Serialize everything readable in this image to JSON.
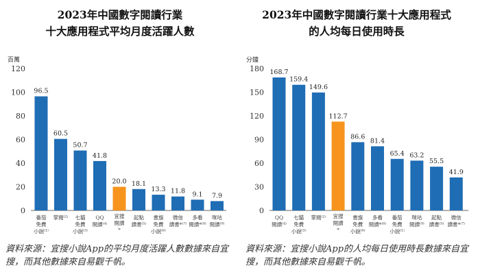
{
  "chart_data": [
    {
      "type": "bar",
      "title": "2023年中國數字閱讀行業",
      "subtitle": "十大應用程式平均月度活躍人數",
      "ylabel": "百萬",
      "ylim": [
        0,
        120
      ],
      "yticks": [
        0,
        20,
        40,
        60,
        80,
        100,
        120
      ],
      "categories": [
        "番茄免費小說⁽¹⁾",
        "掌閱⁽²⁾",
        "七貓免費小說⁽³⁾",
        "QQ閱讀⁽⁴⁾",
        "宜搜閱讀*",
        "起點讀書⁽⁵⁾",
        "書旗免費小說⁽⁶⁾",
        "微信讀書*⁽⁷⁾",
        "多看閱讀*⁽⁸⁾",
        "咪咕閱讀⁽⁹⁾"
      ],
      "values": [
        96.5,
        60.5,
        50.7,
        41.8,
        20.0,
        18.1,
        13.3,
        11.8,
        9.1,
        7.9
      ],
      "value_labels": [
        "96.5",
        "60.5",
        "50.7",
        "41.8",
        "20.0",
        "18.1",
        "13.3",
        "11.8",
        "9.1",
        "7.9"
      ],
      "highlight": "宜搜閱讀*",
      "source": "資料來源：宜搜小說App的平均月度活躍人數數據來自宜搜，而其他數據來自易觀千帆。"
    },
    {
      "type": "bar",
      "title": "2023年中國數字閱讀行業十大應用程式",
      "subtitle": "的人均每日使用時長",
      "ylabel": "分鐘",
      "ylim": [
        0,
        180
      ],
      "yticks": [
        0,
        30,
        60,
        90,
        120,
        150,
        180
      ],
      "categories": [
        "QQ閱讀⁽⁴⁾",
        "七貓免費小說⁽³⁾",
        "掌閱⁽²⁾",
        "宜搜閱讀*",
        "書旗免費小說⁽⁶⁾",
        "多看閱讀*⁽⁸⁾",
        "番茄免費小說⁽¹⁾",
        "咪咕閱讀⁽⁹⁾",
        "起點讀書⁽⁵⁾",
        "微信讀書*⁽⁷⁾"
      ],
      "values": [
        168.7,
        159.4,
        149.6,
        112.7,
        86.6,
        81.4,
        65.4,
        63.2,
        55.5,
        41.9
      ],
      "value_labels": [
        "168.7",
        "159.4",
        "149.6",
        "112.7",
        "86.6",
        "81.4",
        "65.4",
        "63.2",
        "55.5",
        "41.9"
      ],
      "highlight": "宜搜閱讀*",
      "source": "資料來源：宜搜小說App的人均每日使用時長數據來自宜搜，而其他數據來自易觀千帆。"
    }
  ],
  "colors": {
    "bar": "#1f6db5",
    "highlight": "#f7941d",
    "axis": "#999999"
  }
}
